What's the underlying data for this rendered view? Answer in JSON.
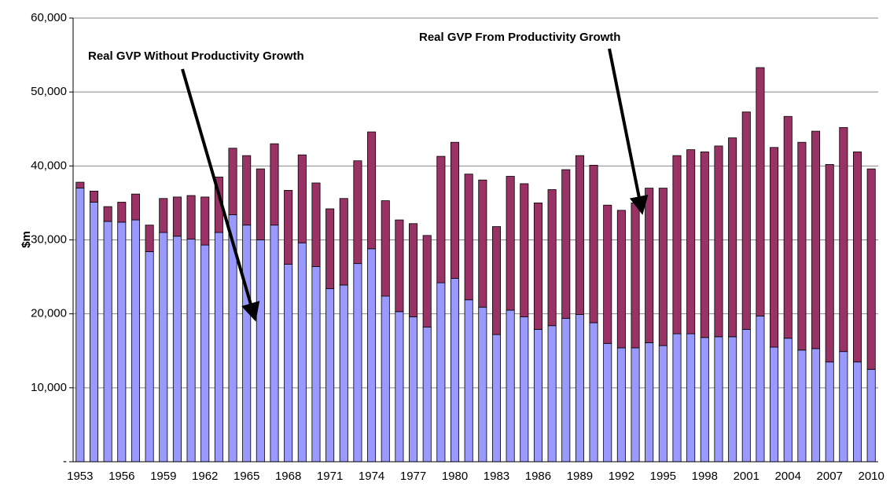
{
  "chart_data": {
    "type": "stacked-bar",
    "y_label": "$m",
    "categories": [
      "1953",
      null,
      null,
      "1956",
      null,
      null,
      "1959",
      null,
      null,
      "1962",
      null,
      null,
      "1965",
      null,
      null,
      "1968",
      null,
      null,
      "1971",
      null,
      null,
      "1974",
      null,
      null,
      "1977",
      null,
      null,
      "1980",
      null,
      null,
      "1983",
      null,
      null,
      "1986",
      null,
      null,
      "1989",
      null,
      null,
      "1992",
      null,
      null,
      "1995",
      null,
      null,
      "1998",
      null,
      null,
      "2001",
      null,
      null,
      "2004",
      null,
      null,
      "2007",
      null,
      null,
      "2010"
    ],
    "series": [
      {
        "name": "Real GVP Without Productivity Growth",
        "color": "#9999ff",
        "values": [
          37000,
          35100,
          32500,
          32400,
          32700,
          28400,
          31000,
          30500,
          30100,
          29300,
          31000,
          33400,
          32000,
          30000,
          32000,
          26700,
          29600,
          26400,
          23400,
          23900,
          26800,
          28800,
          22400,
          20300,
          19600,
          18200,
          24200,
          24800,
          21900,
          20900,
          17200,
          20500,
          19600,
          17900,
          18400,
          19400,
          19900,
          18800,
          16000,
          15400,
          15400,
          16100,
          15700,
          17300,
          17300,
          16800,
          16900,
          16900,
          17900,
          19700,
          15500,
          16700,
          15100,
          15300,
          13500,
          14900,
          13500,
          12500
        ]
      },
      {
        "name": "Real GVP From Productivity Growth",
        "color": "#993366",
        "values": [
          800,
          1500,
          2000,
          2700,
          3500,
          3600,
          4600,
          5300,
          5900,
          6500,
          7500,
          9000,
          9400,
          9600,
          11000,
          10000,
          11900,
          11300,
          10800,
          11700,
          13900,
          15800,
          12900,
          12400,
          12600,
          12400,
          17100,
          18400,
          17000,
          17200,
          14600,
          18100,
          18000,
          17100,
          18400,
          20100,
          21500,
          21300,
          18700,
          18600,
          19600,
          20900,
          21300,
          24100,
          24900,
          25100,
          25800,
          26900,
          29400,
          33600,
          27000,
          30000,
          28100,
          29400,
          26700,
          30300,
          28400,
          27100
        ]
      }
    ],
    "ylim": [
      0,
      60000
    ],
    "yticks": [
      {
        "value": 0,
        "label": "-"
      },
      {
        "value": 10000,
        "label": "10,000"
      },
      {
        "value": 20000,
        "label": "20,000"
      },
      {
        "value": 30000,
        "label": "30,000"
      },
      {
        "value": 40000,
        "label": "40,000"
      },
      {
        "value": 50000,
        "label": "50,000"
      },
      {
        "value": 60000,
        "label": "60,000"
      }
    ],
    "grid": true
  }
}
